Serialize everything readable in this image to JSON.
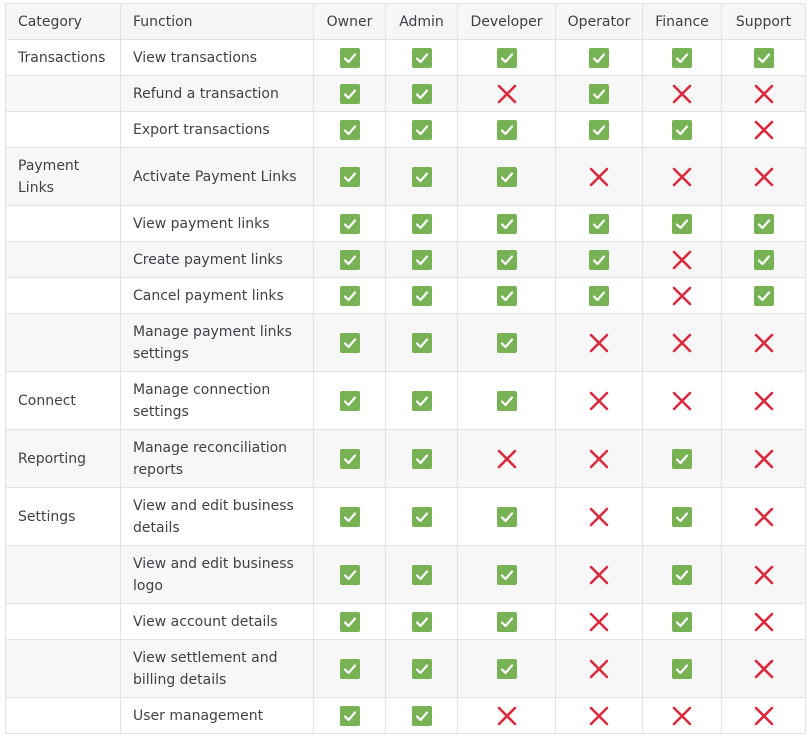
{
  "table": {
    "headers": [
      "Category",
      "Function",
      "Owner",
      "Admin",
      "Developer",
      "Operator",
      "Finance",
      "Support"
    ],
    "colors": {
      "allowed": "#77b254",
      "denied": "#dc2a3e"
    },
    "rows": [
      {
        "category": "Transactions",
        "function": "View transactions",
        "perms": [
          true,
          true,
          true,
          true,
          true,
          true
        ]
      },
      {
        "category": "",
        "function": "Refund a transaction",
        "perms": [
          true,
          true,
          false,
          true,
          false,
          false
        ]
      },
      {
        "category": "",
        "function": "Export transactions",
        "perms": [
          true,
          true,
          true,
          true,
          true,
          false
        ]
      },
      {
        "category": "Payment Links",
        "function": "Activate Payment Links",
        "perms": [
          true,
          true,
          true,
          false,
          false,
          false
        ]
      },
      {
        "category": "",
        "function": "View payment links",
        "perms": [
          true,
          true,
          true,
          true,
          true,
          true
        ]
      },
      {
        "category": "",
        "function": "Create payment links",
        "perms": [
          true,
          true,
          true,
          true,
          false,
          true
        ]
      },
      {
        "category": "",
        "function": "Cancel payment links",
        "perms": [
          true,
          true,
          true,
          true,
          false,
          true
        ]
      },
      {
        "category": "",
        "function": "Manage payment links settings",
        "perms": [
          true,
          true,
          true,
          false,
          false,
          false
        ]
      },
      {
        "category": "Connect",
        "function": "Manage connection settings",
        "perms": [
          true,
          true,
          true,
          false,
          false,
          false
        ]
      },
      {
        "category": "Reporting",
        "function": "Manage reconciliation reports",
        "perms": [
          true,
          true,
          false,
          false,
          true,
          false
        ]
      },
      {
        "category": "Settings",
        "function": "View and edit business details",
        "perms": [
          true,
          true,
          true,
          false,
          true,
          false
        ]
      },
      {
        "category": "",
        "function": "View and edit business logo",
        "perms": [
          true,
          true,
          true,
          false,
          true,
          false
        ]
      },
      {
        "category": "",
        "function": "View account details",
        "perms": [
          true,
          true,
          true,
          false,
          true,
          false
        ]
      },
      {
        "category": "",
        "function": "View settlement and billing details",
        "perms": [
          true,
          true,
          true,
          false,
          true,
          false
        ]
      },
      {
        "category": "",
        "function": "User management",
        "perms": [
          true,
          true,
          false,
          false,
          false,
          false
        ]
      }
    ]
  }
}
